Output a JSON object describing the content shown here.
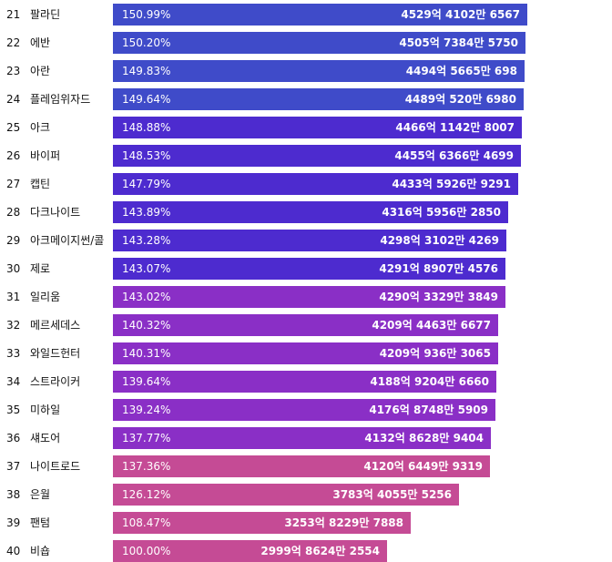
{
  "chart_data": {
    "type": "bar",
    "orientation": "horizontal",
    "colors": {
      "blue": "#3f4bc9",
      "indigo": "#4d2bcf",
      "purple": "#8a2fc6",
      "magenta": "#c54b95"
    },
    "rows": [
      {
        "rank": "21",
        "name": "팔라딘",
        "percent": 150.99,
        "percent_label": "150.99%",
        "value_label": "4529억 4102만 6567",
        "color": "#3f4bc9"
      },
      {
        "rank": "22",
        "name": "에반",
        "percent": 150.2,
        "percent_label": "150.20%",
        "value_label": "4505억 7384만 5750",
        "color": "#3f4bc9"
      },
      {
        "rank": "23",
        "name": "아란",
        "percent": 149.83,
        "percent_label": "149.83%",
        "value_label": "4494억 5665만 698",
        "color": "#3f4bc9"
      },
      {
        "rank": "24",
        "name": "플레임위자드",
        "percent": 149.64,
        "percent_label": "149.64%",
        "value_label": "4489억 520만 6980",
        "color": "#3f4bc9"
      },
      {
        "rank": "25",
        "name": "아크",
        "percent": 148.88,
        "percent_label": "148.88%",
        "value_label": "4466억 1142만 8007",
        "color": "#4d2bcf"
      },
      {
        "rank": "26",
        "name": "바이퍼",
        "percent": 148.53,
        "percent_label": "148.53%",
        "value_label": "4455억 6366만 4699",
        "color": "#4d2bcf"
      },
      {
        "rank": "27",
        "name": "캡틴",
        "percent": 147.79,
        "percent_label": "147.79%",
        "value_label": "4433억 5926만 9291",
        "color": "#4d2bcf"
      },
      {
        "rank": "28",
        "name": "다크나이트",
        "percent": 143.89,
        "percent_label": "143.89%",
        "value_label": "4316억 5956만 2850",
        "color": "#4d2bcf"
      },
      {
        "rank": "29",
        "name": "아크메이지썬/콜",
        "percent": 143.28,
        "percent_label": "143.28%",
        "value_label": "4298억 3102만 4269",
        "color": "#4d2bcf"
      },
      {
        "rank": "30",
        "name": "제로",
        "percent": 143.07,
        "percent_label": "143.07%",
        "value_label": "4291억 8907만 4576",
        "color": "#4d2bcf"
      },
      {
        "rank": "31",
        "name": "일리움",
        "percent": 143.02,
        "percent_label": "143.02%",
        "value_label": "4290억 3329만 3849",
        "color": "#8a2fc6"
      },
      {
        "rank": "32",
        "name": "메르세데스",
        "percent": 140.32,
        "percent_label": "140.32%",
        "value_label": "4209억 4463만 6677",
        "color": "#8a2fc6"
      },
      {
        "rank": "33",
        "name": "와일드헌터",
        "percent": 140.31,
        "percent_label": "140.31%",
        "value_label": "4209억 936만 3065",
        "color": "#8a2fc6"
      },
      {
        "rank": "34",
        "name": "스트라이커",
        "percent": 139.64,
        "percent_label": "139.64%",
        "value_label": "4188억 9204만 6660",
        "color": "#8a2fc6"
      },
      {
        "rank": "35",
        "name": "미하일",
        "percent": 139.24,
        "percent_label": "139.24%",
        "value_label": "4176억 8748만 5909",
        "color": "#8a2fc6"
      },
      {
        "rank": "36",
        "name": "섀도어",
        "percent": 137.77,
        "percent_label": "137.77%",
        "value_label": "4132억 8628만 9404",
        "color": "#8a2fc6"
      },
      {
        "rank": "37",
        "name": "나이트로드",
        "percent": 137.36,
        "percent_label": "137.36%",
        "value_label": "4120억 6449만 9319",
        "color": "#c54b95"
      },
      {
        "rank": "38",
        "name": "은월",
        "percent": 126.12,
        "percent_label": "126.12%",
        "value_label": "3783억 4055만 5256",
        "color": "#c54b95"
      },
      {
        "rank": "39",
        "name": "팬텀",
        "percent": 108.47,
        "percent_label": "108.47%",
        "value_label": "3253억 8229만 7888",
        "color": "#c54b95"
      },
      {
        "rank": "40",
        "name": "비숍",
        "percent": 100.0,
        "percent_label": "100.00%",
        "value_label": "2999억 8624만 2554",
        "color": "#c54b95"
      }
    ]
  }
}
